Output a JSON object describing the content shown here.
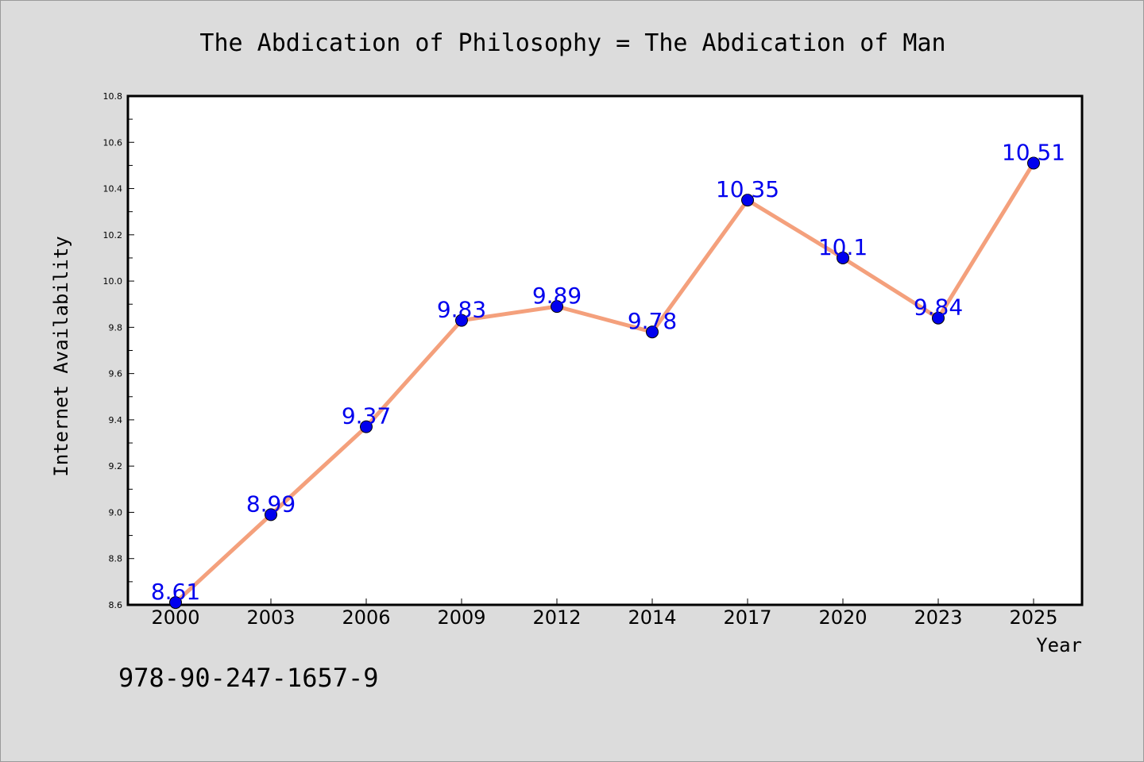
{
  "chart_data": {
    "type": "line",
    "title": "The Abdication of Philosophy = The Abdication of Man",
    "xlabel": "Year",
    "ylabel": "Internet Availability",
    "categories": [
      "2000",
      "2003",
      "2006",
      "2009",
      "2012",
      "2014",
      "2017",
      "2020",
      "2023",
      "2025"
    ],
    "series": [
      {
        "values": [
          8.61,
          8.99,
          9.37,
          9.83,
          9.89,
          9.78,
          10.35,
          10.1,
          9.84,
          10.51
        ],
        "data_labels": [
          "8.61",
          "8.99",
          "9.37",
          "9.83",
          "9.89",
          "9.78",
          "10.35",
          "10.1",
          "9.84",
          "10.51"
        ],
        "line_color": "#f4a07c",
        "marker_color": "#0000ee"
      }
    ],
    "ylim": [
      8.6,
      10.8
    ],
    "yticks": [
      "8.6",
      "8.8",
      "9.0",
      "9.2",
      "9.4",
      "9.6",
      "9.8",
      "10.0",
      "10.2",
      "10.4",
      "10.6",
      "10.8"
    ],
    "grid": false,
    "legend": "none",
    "label_color": "#0000ee"
  },
  "footer": {
    "isbn": "978-90-247-1657-9"
  },
  "colors": {
    "background": "#dcdcdc",
    "plot_area": "#ffffff",
    "axis": "#000000"
  }
}
